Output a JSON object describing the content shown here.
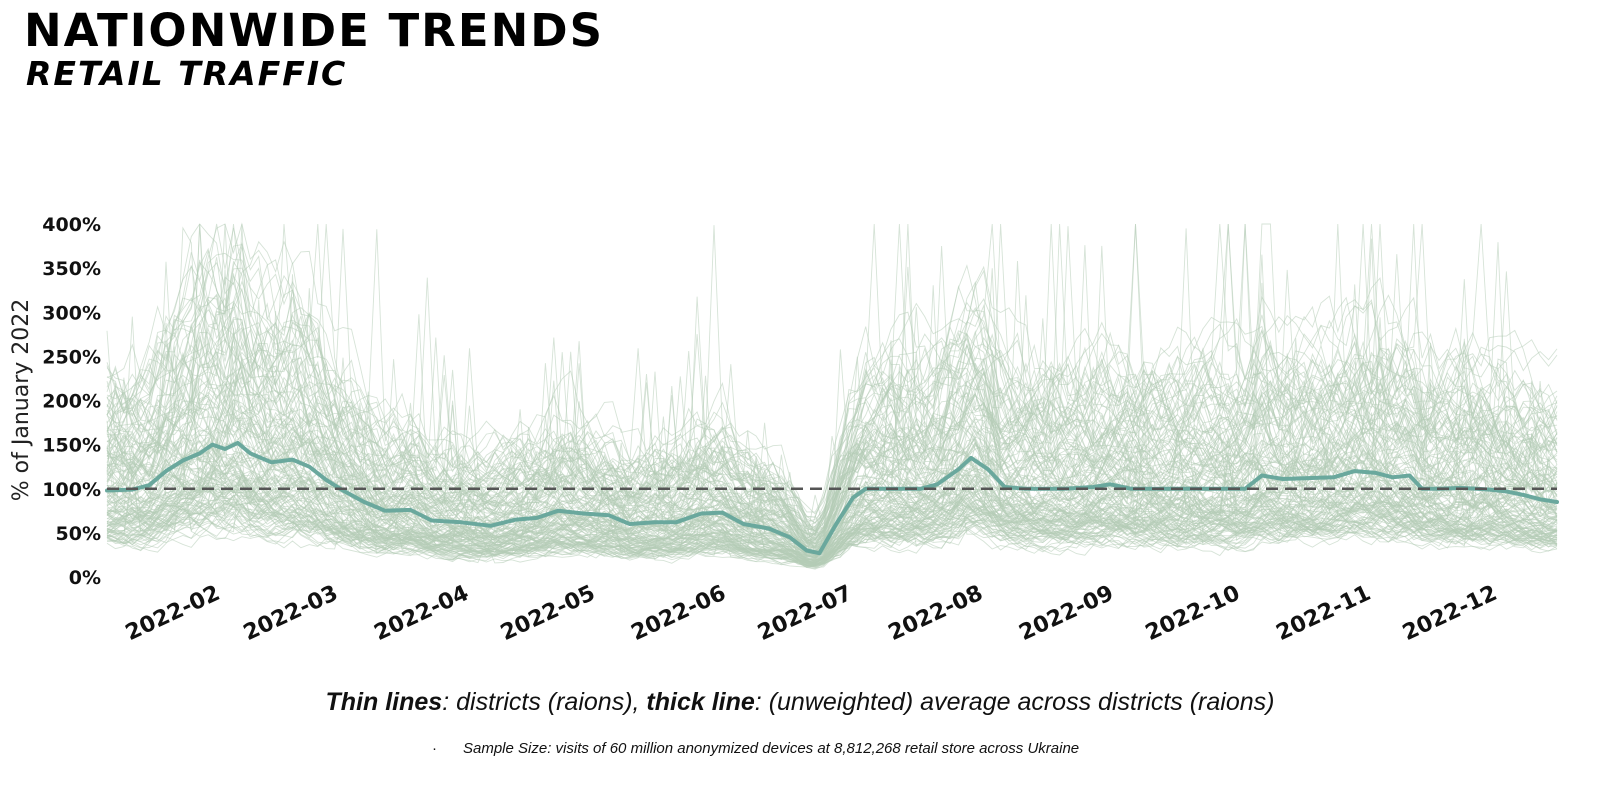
{
  "header": {
    "title": "NATIONWIDE TRENDS",
    "subtitle": "RETAIL TRAFFIC"
  },
  "notes": {
    "thin_label": "Thin lines",
    "thin_text": ": districts (raions), ",
    "thick_label": "thick line",
    "thick_text": ": (unweighted) average across districts (raions)",
    "bullet": "·",
    "sample_size": "Sample Size: visits of 60 million anonymized devices at 8,812,268 retail store across Ukraine"
  },
  "colors": {
    "thin_lines": "#b5ccb7",
    "average_line": "#6aa89d",
    "baseline": "#555555"
  },
  "chart_data": {
    "type": "line",
    "title": "",
    "xlabel": "",
    "ylabel": "% of January 2022",
    "x_range": [
      "2022-01-21",
      "2022-12-31"
    ],
    "ylim": [
      0,
      400
    ],
    "y_ticks": [
      "0%",
      "50%",
      "100%",
      "150%",
      "200%",
      "250%",
      "300%",
      "350%",
      "400%"
    ],
    "x_ticks": [
      {
        "date": "2022-02-01",
        "label": "2022-02"
      },
      {
        "date": "2022-03-01",
        "label": "2022-03"
      },
      {
        "date": "2022-04-01",
        "label": "2022-04"
      },
      {
        "date": "2022-05-01",
        "label": "2022-05"
      },
      {
        "date": "2022-06-01",
        "label": "2022-06"
      },
      {
        "date": "2022-07-01",
        "label": "2022-07"
      },
      {
        "date": "2022-08-01",
        "label": "2022-08"
      },
      {
        "date": "2022-09-01",
        "label": "2022-09"
      },
      {
        "date": "2022-10-01",
        "label": "2022-10"
      },
      {
        "date": "2022-11-01",
        "label": "2022-11"
      },
      {
        "date": "2022-12-01",
        "label": "2022-12"
      }
    ],
    "baseline": 100,
    "grid": false,
    "series": [
      {
        "style": "thick",
        "points": [
          [
            "2022-01-21",
            98
          ],
          [
            "2022-01-27",
            99
          ],
          [
            "2022-01-31",
            104
          ],
          [
            "2022-02-04",
            120
          ],
          [
            "2022-02-08",
            132
          ],
          [
            "2022-02-12",
            140
          ],
          [
            "2022-02-15",
            150
          ],
          [
            "2022-02-18",
            145
          ],
          [
            "2022-02-21",
            152
          ],
          [
            "2022-02-24",
            140
          ],
          [
            "2022-03-01",
            130
          ],
          [
            "2022-03-06",
            133
          ],
          [
            "2022-03-10",
            125
          ],
          [
            "2022-03-14",
            110
          ],
          [
            "2022-03-18",
            98
          ],
          [
            "2022-03-23",
            85
          ],
          [
            "2022-03-28",
            75
          ],
          [
            "2022-04-03",
            76
          ],
          [
            "2022-04-08",
            64
          ],
          [
            "2022-04-15",
            62
          ],
          [
            "2022-04-22",
            58
          ],
          [
            "2022-04-28",
            65
          ],
          [
            "2022-05-03",
            67
          ],
          [
            "2022-05-08",
            75
          ],
          [
            "2022-05-14",
            72
          ],
          [
            "2022-05-20",
            70
          ],
          [
            "2022-05-25",
            60
          ],
          [
            "2022-05-31",
            62
          ],
          [
            "2022-06-05",
            62
          ],
          [
            "2022-06-11",
            72
          ],
          [
            "2022-06-16",
            73
          ],
          [
            "2022-06-21",
            60
          ],
          [
            "2022-06-27",
            55
          ],
          [
            "2022-07-02",
            45
          ],
          [
            "2022-07-06",
            30
          ],
          [
            "2022-07-09",
            27
          ],
          [
            "2022-07-13",
            60
          ],
          [
            "2022-07-17",
            90
          ],
          [
            "2022-07-20",
            100
          ],
          [
            "2022-07-25",
            100
          ],
          [
            "2022-08-02",
            100
          ],
          [
            "2022-08-06",
            105
          ],
          [
            "2022-08-11",
            122
          ],
          [
            "2022-08-14",
            135
          ],
          [
            "2022-08-18",
            122
          ],
          [
            "2022-08-22",
            102
          ],
          [
            "2022-08-27",
            100
          ],
          [
            "2022-09-05",
            100
          ],
          [
            "2022-09-12",
            102
          ],
          [
            "2022-09-16",
            105
          ],
          [
            "2022-09-21",
            100
          ],
          [
            "2022-10-01",
            100
          ],
          [
            "2022-10-13",
            100
          ],
          [
            "2022-10-18",
            100
          ],
          [
            "2022-10-22",
            115
          ],
          [
            "2022-10-27",
            111
          ],
          [
            "2022-11-01",
            112
          ],
          [
            "2022-11-08",
            113
          ],
          [
            "2022-11-13",
            120
          ],
          [
            "2022-11-18",
            118
          ],
          [
            "2022-11-22",
            113
          ],
          [
            "2022-11-26",
            115
          ],
          [
            "2022-11-29",
            100
          ],
          [
            "2022-12-03",
            100
          ],
          [
            "2022-12-08",
            101
          ],
          [
            "2022-12-12",
            100
          ],
          [
            "2022-12-15",
            99
          ],
          [
            "2022-12-19",
            97
          ],
          [
            "2022-12-23",
            93
          ],
          [
            "2022-12-27",
            88
          ],
          [
            "2022-12-31",
            85
          ]
        ]
      }
    ]
  }
}
